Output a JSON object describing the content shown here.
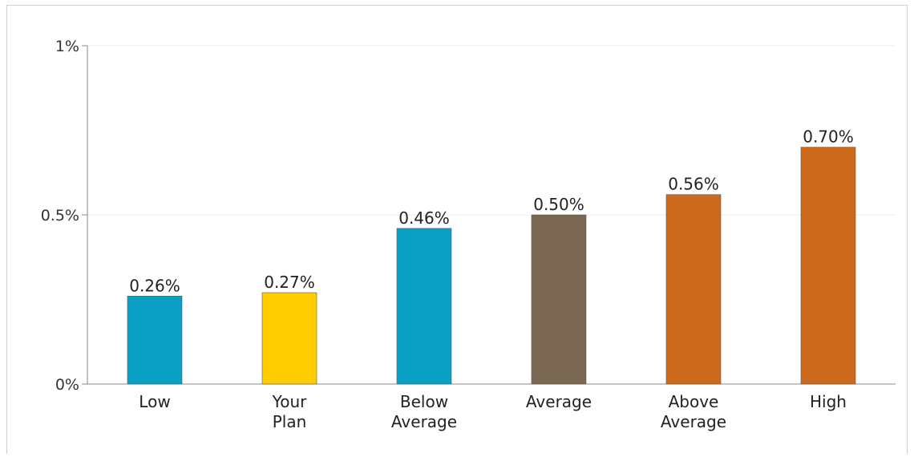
{
  "chart_data": {
    "type": "bar",
    "categories": [
      [
        "Low"
      ],
      [
        "Your",
        "Plan"
      ],
      [
        "Below",
        "Average"
      ],
      [
        "Average"
      ],
      [
        "Above",
        "Average"
      ],
      [
        "High"
      ]
    ],
    "values": [
      0.26,
      0.27,
      0.46,
      0.5,
      0.56,
      0.7
    ],
    "value_labels": [
      "0.26%",
      "0.27%",
      "0.46%",
      "0.50%",
      "0.56%",
      "0.70%"
    ],
    "bar_colors": [
      "#0AA0C4",
      "#FFCC00",
      "#0AA0C4",
      "#7B6852",
      "#CC6A1C",
      "#CC6A1C"
    ],
    "bar_stroke": "#5a5a5a",
    "ylim": [
      0,
      1
    ],
    "yticks": [
      {
        "value": 0,
        "label": "0%"
      },
      {
        "value": 0.5,
        "label": "0.5%"
      },
      {
        "value": 1,
        "label": "1%"
      }
    ],
    "grid": true,
    "title": "",
    "xlabel": "",
    "ylabel": ""
  }
}
